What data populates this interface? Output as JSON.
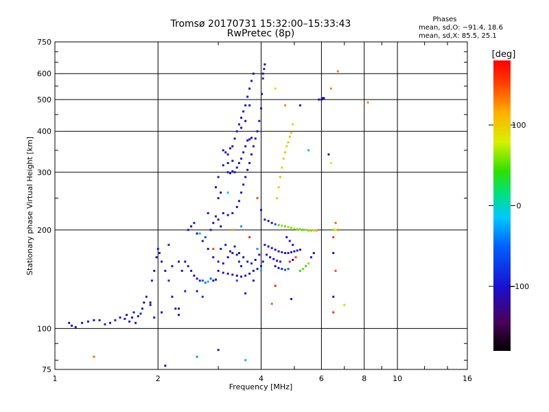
{
  "chart_data": {
    "type": "scatter",
    "title": "Tromsø 20170731 15:32:00–15:33:43",
    "subtitle": "RwPretec (8p)",
    "phases_header": {
      "title": "Phases",
      "line_o": "mean, sd,O: −91.4, 18.6",
      "line_x": "mean, sd,X:  85.5, 25.1"
    },
    "xlabel": "Frequency [MHz]",
    "ylabel": "Stationary phase Virtual Height [km]",
    "x_scale": "log",
    "y_scale": "log",
    "xlim": [
      1,
      16
    ],
    "ylim": [
      75,
      750
    ],
    "x_ticks": [
      {
        "value": 1,
        "label": "1"
      },
      {
        "value": 2,
        "label": "2"
      },
      {
        "value": 4,
        "label": "4"
      },
      {
        "value": 6,
        "label": "6"
      },
      {
        "value": 8,
        "label": "8"
      },
      {
        "value": 10,
        "label": "10"
      },
      {
        "value": 16,
        "label": "16"
      }
    ],
    "y_ticks": [
      {
        "value": 75,
        "label": "75"
      },
      {
        "value": 100,
        "label": "100"
      },
      {
        "value": 200,
        "label": "200"
      },
      {
        "value": 300,
        "label": "300"
      },
      {
        "value": 400,
        "label": "400"
      },
      {
        "value": 500,
        "label": "500"
      },
      {
        "value": 600,
        "label": "600"
      },
      {
        "value": 750,
        "label": "750"
      }
    ],
    "grid": true,
    "colorbar": {
      "label": "deg",
      "range": [
        -180,
        180
      ],
      "ticks": [
        {
          "value": 100,
          "label": "100"
        },
        {
          "value": 0,
          "label": "0"
        },
        {
          "value": -100,
          "label": "−100"
        }
      ]
    },
    "points": [
      [
        1.1,
        104,
        -110
      ],
      [
        1.12,
        102,
        -115
      ],
      [
        1.15,
        101,
        -105
      ],
      [
        1.2,
        104,
        -100
      ],
      [
        1.25,
        105,
        -110
      ],
      [
        1.3,
        106,
        -120
      ],
      [
        1.35,
        106,
        -100
      ],
      [
        1.4,
        103,
        -110
      ],
      [
        1.45,
        104,
        -105
      ],
      [
        1.5,
        106,
        -95
      ],
      [
        1.55,
        108,
        -110
      ],
      [
        1.6,
        107,
        -100
      ],
      [
        1.62,
        110,
        -115
      ],
      [
        1.65,
        105,
        -90
      ],
      [
        1.68,
        108,
        -105
      ],
      [
        1.7,
        112,
        -95
      ],
      [
        1.72,
        104,
        -110
      ],
      [
        1.75,
        109,
        -100
      ],
      [
        1.78,
        111,
        -85
      ],
      [
        1.8,
        115,
        -100
      ],
      [
        1.82,
        120,
        -110
      ],
      [
        1.85,
        125,
        -95
      ],
      [
        1.9,
        118,
        -100
      ],
      [
        1.92,
        140,
        -105
      ],
      [
        1.95,
        150,
        -110
      ],
      [
        1.98,
        165,
        -120
      ],
      [
        2.0,
        175,
        -100
      ],
      [
        2.02,
        170,
        -95
      ],
      [
        2.05,
        160,
        -110
      ],
      [
        2.1,
        150,
        -100
      ],
      [
        2.15,
        140,
        -90
      ],
      [
        2.2,
        125,
        -105
      ],
      [
        2.25,
        115,
        -110
      ],
      [
        2.3,
        110,
        -120
      ],
      [
        2.05,
        112,
        -100
      ],
      [
        1.95,
        108,
        -110
      ],
      [
        2.4,
        160,
        -100
      ],
      [
        2.45,
        155,
        -95
      ],
      [
        2.5,
        150,
        -110
      ],
      [
        2.55,
        145,
        -120
      ],
      [
        2.6,
        142,
        -100
      ],
      [
        2.65,
        140,
        -90
      ],
      [
        2.7,
        140,
        -60
      ],
      [
        2.75,
        138,
        -40
      ],
      [
        2.8,
        139,
        -20
      ],
      [
        2.85,
        142,
        -50
      ],
      [
        2.9,
        140,
        -100
      ],
      [
        2.95,
        141,
        -110
      ],
      [
        2.45,
        200,
        -100
      ],
      [
        2.5,
        205,
        -110
      ],
      [
        2.55,
        210,
        -95
      ],
      [
        2.6,
        195,
        -120
      ],
      [
        2.7,
        185,
        -105
      ],
      [
        2.8,
        175,
        -100
      ],
      [
        2.9,
        165,
        -110
      ],
      [
        3.0,
        160,
        -90
      ],
      [
        3.1,
        158,
        -100
      ],
      [
        3.2,
        165,
        -115
      ],
      [
        3.3,
        170,
        -105
      ],
      [
        3.4,
        168,
        -95
      ],
      [
        3.0,
        150,
        -110
      ],
      [
        3.1,
        148,
        -100
      ],
      [
        3.2,
        147,
        -105
      ],
      [
        3.3,
        146,
        -110
      ],
      [
        3.4,
        145,
        -120
      ],
      [
        3.5,
        144,
        -100
      ],
      [
        3.6,
        145,
        -95
      ],
      [
        3.7,
        147,
        -105
      ],
      [
        3.8,
        150,
        -110
      ],
      [
        3.9,
        152,
        -100
      ],
      [
        4.0,
        155,
        -90
      ],
      [
        4.05,
        160,
        -105
      ],
      [
        3.05,
        175,
        -100
      ],
      [
        3.15,
        180,
        -110
      ],
      [
        3.25,
        172,
        -95
      ],
      [
        3.35,
        178,
        -100
      ],
      [
        3.45,
        170,
        -110
      ],
      [
        3.55,
        165,
        -105
      ],
      [
        3.65,
        160,
        -100
      ],
      [
        3.75,
        158,
        -95
      ],
      [
        3.85,
        162,
        -110
      ],
      [
        3.95,
        168,
        -100
      ],
      [
        3.5,
        155,
        -100
      ],
      [
        3.45,
        160,
        -90
      ],
      [
        2.85,
        200,
        -100
      ],
      [
        2.9,
        210,
        -110
      ],
      [
        2.95,
        220,
        -95
      ],
      [
        3.0,
        215,
        -100
      ],
      [
        3.05,
        205,
        -120
      ],
      [
        2.75,
        190,
        -60
      ],
      [
        2.65,
        195,
        -20
      ],
      [
        2.8,
        225,
        -100
      ],
      [
        3.0,
        250,
        -100
      ],
      [
        3.1,
        225,
        -110
      ],
      [
        3.2,
        222,
        -100
      ],
      [
        3.3,
        225,
        -105
      ],
      [
        3.4,
        235,
        -110
      ],
      [
        3.45,
        245,
        -100
      ],
      [
        3.5,
        260,
        -95
      ],
      [
        3.55,
        275,
        -105
      ],
      [
        3.6,
        290,
        -110
      ],
      [
        3.65,
        305,
        -100
      ],
      [
        3.7,
        320,
        -105
      ],
      [
        3.75,
        340,
        -110
      ],
      [
        3.8,
        360,
        -100
      ],
      [
        3.85,
        380,
        -95
      ],
      [
        3.9,
        400,
        -110
      ],
      [
        3.95,
        430,
        -100
      ],
      [
        4.0,
        470,
        -105
      ],
      [
        4.02,
        520,
        -110
      ],
      [
        4.05,
        580,
        -100
      ],
      [
        4.08,
        620,
        -95
      ],
      [
        4.1,
        640,
        -110
      ],
      [
        4.05,
        600,
        -105
      ],
      [
        3.2,
        300,
        -100
      ],
      [
        3.25,
        298,
        -110
      ],
      [
        3.3,
        302,
        -95
      ],
      [
        3.35,
        300,
        -100
      ],
      [
        3.4,
        310,
        -110
      ],
      [
        3.45,
        320,
        -105
      ],
      [
        3.5,
        330,
        -100
      ],
      [
        3.55,
        345,
        -95
      ],
      [
        3.6,
        360,
        -110
      ],
      [
        3.65,
        375,
        -100
      ],
      [
        3.7,
        378,
        -105
      ],
      [
        3.75,
        382,
        -110
      ],
      [
        3.1,
        350,
        -100
      ],
      [
        3.15,
        345,
        -110
      ],
      [
        3.2,
        340,
        -95
      ],
      [
        3.25,
        355,
        -100
      ],
      [
        3.3,
        360,
        -105
      ],
      [
        3.35,
        380,
        -110
      ],
      [
        3.4,
        400,
        -100
      ],
      [
        3.45,
        420,
        -95
      ],
      [
        3.5,
        440,
        -110
      ],
      [
        3.55,
        460,
        -100
      ],
      [
        3.6,
        480,
        -105
      ],
      [
        3.65,
        510,
        -110
      ],
      [
        3.7,
        540,
        -100
      ],
      [
        3.75,
        570,
        -95
      ],
      [
        3.8,
        600,
        -110
      ],
      [
        3.7,
        480,
        -100
      ],
      [
        3.6,
        430,
        -110
      ],
      [
        3.5,
        410,
        -105
      ],
      [
        3.3,
        325,
        -100
      ],
      [
        3.2,
        320,
        -110
      ],
      [
        3.1,
        315,
        -95
      ],
      [
        3.0,
        290,
        -100
      ],
      [
        2.95,
        270,
        -110
      ],
      [
        3.05,
        260,
        -105
      ],
      [
        4.1,
        215,
        -100
      ],
      [
        4.2,
        213,
        -110
      ],
      [
        4.3,
        210,
        -95
      ],
      [
        4.4,
        208,
        -60
      ],
      [
        4.5,
        207,
        50
      ],
      [
        4.6,
        206,
        60
      ],
      [
        4.7,
        205,
        55
      ],
      [
        4.8,
        204,
        65
      ],
      [
        4.9,
        203,
        60
      ],
      [
        5.0,
        202,
        70
      ],
      [
        5.1,
        201,
        55
      ],
      [
        5.2,
        201,
        60
      ],
      [
        5.3,
        200,
        50
      ],
      [
        5.4,
        200,
        65
      ],
      [
        5.5,
        199,
        60
      ],
      [
        5.6,
        199,
        55
      ],
      [
        5.7,
        199,
        100
      ],
      [
        5.8,
        199,
        120
      ],
      [
        6.5,
        200,
        60
      ],
      [
        6.6,
        200,
        80
      ],
      [
        6.7,
        200,
        130
      ],
      [
        6.5,
        190,
        160
      ],
      [
        4.1,
        180,
        -100
      ],
      [
        4.2,
        178,
        -110
      ],
      [
        4.3,
        176,
        -105
      ],
      [
        4.4,
        174,
        -100
      ],
      [
        4.5,
        172,
        -110
      ],
      [
        4.6,
        171,
        -95
      ],
      [
        4.7,
        170,
        -100
      ],
      [
        4.8,
        170,
        -110
      ],
      [
        4.9,
        171,
        -105
      ],
      [
        5.0,
        172,
        -100
      ],
      [
        5.1,
        173,
        -95
      ],
      [
        5.2,
        174,
        -110
      ],
      [
        4.15,
        168,
        -100
      ],
      [
        4.25,
        165,
        -105
      ],
      [
        4.35,
        163,
        -110
      ],
      [
        4.45,
        161,
        -100
      ],
      [
        4.55,
        160,
        -90
      ],
      [
        4.4,
        155,
        -100
      ],
      [
        4.5,
        153,
        -110
      ],
      [
        4.6,
        152,
        -90
      ],
      [
        4.7,
        151,
        -60
      ],
      [
        4.8,
        152,
        -50
      ],
      [
        5.2,
        150,
        40
      ],
      [
        5.3,
        152,
        55
      ],
      [
        5.4,
        155,
        45
      ],
      [
        5.5,
        158,
        60
      ],
      [
        5.6,
        165,
        -100
      ],
      [
        5.7,
        170,
        -110
      ],
      [
        4.45,
        250,
        100
      ],
      [
        4.5,
        270,
        105
      ],
      [
        4.55,
        290,
        110
      ],
      [
        4.6,
        310,
        100
      ],
      [
        4.65,
        330,
        105
      ],
      [
        4.7,
        345,
        110
      ],
      [
        4.75,
        360,
        100
      ],
      [
        4.8,
        370,
        105
      ],
      [
        4.85,
        385,
        110
      ],
      [
        4.9,
        395,
        100
      ],
      [
        4.95,
        420,
        105
      ],
      [
        6.0,
        500,
        -100
      ],
      [
        6.05,
        505,
        -110
      ],
      [
        6.4,
        540,
        130
      ],
      [
        6.7,
        610,
        130
      ],
      [
        4.7,
        480,
        130
      ],
      [
        4.4,
        540,
        90
      ],
      [
        8.2,
        490,
        130
      ],
      [
        6.3,
        340,
        -100
      ],
      [
        6.4,
        320,
        80
      ],
      [
        6.6,
        210,
        140
      ],
      [
        6.5,
        170,
        -100
      ],
      [
        6.6,
        150,
        150
      ],
      [
        6.5,
        125,
        -120
      ],
      [
        6.5,
        112,
        160
      ],
      [
        7.0,
        118,
        70
      ],
      [
        1.3,
        82,
        140
      ],
      [
        2.6,
        82,
        -30
      ],
      [
        3.0,
        86,
        -100
      ],
      [
        3.6,
        80,
        -20
      ],
      [
        2.1,
        77,
        -110
      ],
      [
        3.6,
        128,
        -100
      ],
      [
        4.3,
        119,
        140
      ],
      [
        4.9,
        123,
        -100
      ],
      [
        4.4,
        135,
        160
      ],
      [
        2.7,
        125,
        -80
      ],
      [
        2.3,
        115,
        -100
      ],
      [
        2.4,
        130,
        -90
      ],
      [
        1.9,
        120,
        -110
      ],
      [
        5.5,
        350,
        -20
      ],
      [
        5.2,
        480,
        -110
      ],
      [
        3.9,
        250,
        150
      ],
      [
        4.0,
        230,
        -100
      ],
      [
        2.6,
        130,
        -100
      ],
      [
        3.2,
        260,
        -10
      ],
      [
        3.5,
        205,
        -30
      ],
      [
        3.3,
        200,
        120
      ],
      [
        2.9,
        175,
        150
      ],
      [
        3.7,
        190,
        160
      ],
      [
        3.9,
        175,
        -30
      ],
      [
        4.0,
        150,
        -20
      ],
      [
        3.8,
        140,
        -100
      ],
      [
        3.4,
        140,
        -60
      ],
      [
        2.2,
        155,
        -100
      ],
      [
        2.3,
        160,
        -110
      ],
      [
        2.35,
        150,
        -105
      ],
      [
        2.15,
        180,
        -90
      ],
      [
        5.9,
        500,
        -110
      ],
      [
        6.1,
        505,
        -120
      ],
      [
        4.85,
        160,
        170
      ],
      [
        4.95,
        162,
        -100
      ],
      [
        5.05,
        165,
        150
      ],
      [
        4.75,
        190,
        -100
      ],
      [
        4.85,
        185,
        -110
      ],
      [
        4.95,
        180,
        -100
      ]
    ]
  }
}
